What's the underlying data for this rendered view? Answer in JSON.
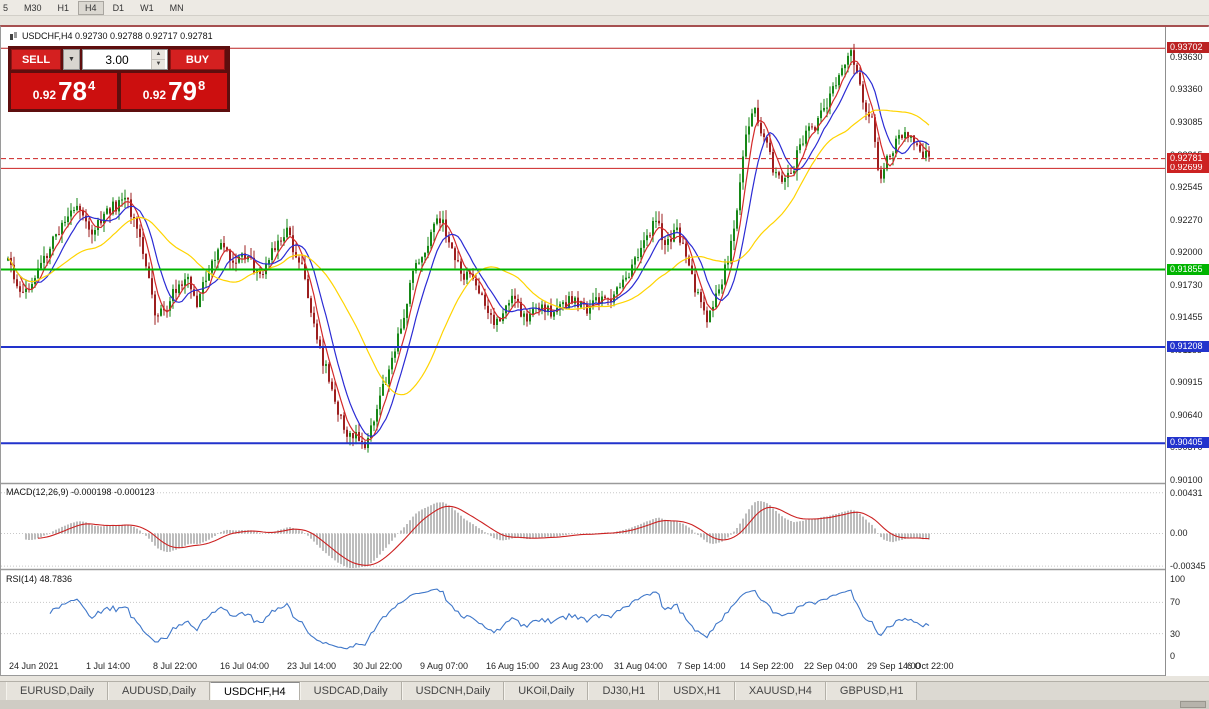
{
  "toolbar": {
    "periods": [
      "5",
      "M30",
      "H1",
      "H4",
      "D1",
      "W1",
      "MN"
    ],
    "active": "H4"
  },
  "chart": {
    "title": "USDCHF,H4 0.92730 0.92788 0.92717 0.92781",
    "trade_panel": {
      "sell_label": "SELL",
      "buy_label": "BUY",
      "lot": "3.00",
      "sell_price": {
        "small": "0.92",
        "big": "78",
        "sup": "4"
      },
      "buy_price": {
        "small": "0.92",
        "big": "79",
        "sup": "8"
      }
    }
  },
  "chart_data": {
    "type": "candlestick",
    "symbol": "USDCHF",
    "timeframe": "H4",
    "ohlc": {
      "open": "0.92730",
      "high": "0.92788",
      "low": "0.92717",
      "close": "0.92781"
    },
    "colors": {
      "candle_up": "#178717",
      "candle_down": "#9c1f1f",
      "ma_fast": "#d42a2a",
      "ma_mid": "#2b2bd4",
      "ma_slow": "#ffd400",
      "macd_hist": "#bdbdbd",
      "macd_signal": "#cc2222",
      "rsi_line": "#3f77c9"
    },
    "main": {
      "price_max": 0.9388,
      "price_min": 0.90081,
      "candle_count": 308,
      "y_ticks": [
        "0.93630",
        "0.93360",
        "0.93085",
        "0.92815",
        "0.92545",
        "0.92270",
        "0.92000",
        "0.91730",
        "0.91455",
        "0.91185",
        "0.90915",
        "0.90640",
        "0.90370",
        "0.90100"
      ],
      "hlines": [
        {
          "price": 0.93702,
          "label": "0.93702",
          "color": "#bb2222",
          "width": 1
        },
        {
          "price": 0.92699,
          "label": "0.92699",
          "color": "#cc2222",
          "width": 1
        },
        {
          "price": 0.91855,
          "label": "0.91855",
          "color": "#00b400",
          "width": 2
        },
        {
          "price": 0.91208,
          "label": "0.91208",
          "color": "#2233cc",
          "width": 2
        },
        {
          "price": 0.90405,
          "label": "0.90405",
          "color": "#2233cc",
          "width": 2
        }
      ],
      "bid": {
        "price": 0.92781,
        "label": "0.92781",
        "color": "#cc2222"
      },
      "path": [
        [
          0.0,
          0.9193
        ],
        [
          0.01,
          0.917
        ],
        [
          0.022,
          0.9168
        ],
        [
          0.035,
          0.919
        ],
        [
          0.06,
          0.9226
        ],
        [
          0.075,
          0.924
        ],
        [
          0.092,
          0.9218
        ],
        [
          0.108,
          0.9235
        ],
        [
          0.129,
          0.9243
        ],
        [
          0.14,
          0.9222
        ],
        [
          0.15,
          0.9185
        ],
        [
          0.16,
          0.915
        ],
        [
          0.172,
          0.9148
        ],
        [
          0.18,
          0.9168
        ],
        [
          0.194,
          0.918
        ],
        [
          0.205,
          0.9158
        ],
        [
          0.22,
          0.9185
        ],
        [
          0.232,
          0.9212
        ],
        [
          0.245,
          0.9185
        ],
        [
          0.258,
          0.9198
        ],
        [
          0.272,
          0.918
        ],
        [
          0.285,
          0.9198
        ],
        [
          0.302,
          0.9218
        ],
        [
          0.318,
          0.919
        ],
        [
          0.33,
          0.915
        ],
        [
          0.342,
          0.911
        ],
        [
          0.355,
          0.9075
        ],
        [
          0.368,
          0.9042
        ],
        [
          0.378,
          0.905
        ],
        [
          0.388,
          0.9036
        ],
        [
          0.398,
          0.906
        ],
        [
          0.408,
          0.9088
        ],
        [
          0.42,
          0.912
        ],
        [
          0.432,
          0.9155
        ],
        [
          0.442,
          0.9188
        ],
        [
          0.455,
          0.9208
        ],
        [
          0.465,
          0.923
        ],
        [
          0.473,
          0.9222
        ],
        [
          0.482,
          0.9205
        ],
        [
          0.492,
          0.9182
        ],
        [
          0.505,
          0.9178
        ],
        [
          0.516,
          0.9158
        ],
        [
          0.527,
          0.914
        ],
        [
          0.538,
          0.9152
        ],
        [
          0.55,
          0.9162
        ],
        [
          0.561,
          0.9145
        ],
        [
          0.575,
          0.9158
        ],
        [
          0.589,
          0.9148
        ],
        [
          0.602,
          0.9155
        ],
        [
          0.615,
          0.9162
        ],
        [
          0.629,
          0.9152
        ],
        [
          0.643,
          0.9163
        ],
        [
          0.656,
          0.9158
        ],
        [
          0.667,
          0.9175
        ],
        [
          0.68,
          0.9192
        ],
        [
          0.694,
          0.9212
        ],
        [
          0.704,
          0.9228
        ],
        [
          0.715,
          0.9205
        ],
        [
          0.726,
          0.9218
        ],
        [
          0.737,
          0.9192
        ],
        [
          0.747,
          0.9168
        ],
        [
          0.758,
          0.9145
        ],
        [
          0.769,
          0.9162
        ],
        [
          0.78,
          0.9188
        ],
        [
          0.79,
          0.9232
        ],
        [
          0.801,
          0.9292
        ],
        [
          0.808,
          0.9322
        ],
        [
          0.819,
          0.9302
        ],
        [
          0.83,
          0.9272
        ],
        [
          0.841,
          0.9255
        ],
        [
          0.852,
          0.9268
        ],
        [
          0.86,
          0.9288
        ],
        [
          0.871,
          0.9302
        ],
        [
          0.882,
          0.9312
        ],
        [
          0.895,
          0.9332
        ],
        [
          0.909,
          0.9356
        ],
        [
          0.916,
          0.9366
        ],
        [
          0.927,
          0.9332
        ],
        [
          0.938,
          0.9308
        ],
        [
          0.946,
          0.9262
        ],
        [
          0.957,
          0.9282
        ],
        [
          0.968,
          0.9295
        ],
        [
          0.978,
          0.93
        ],
        [
          0.989,
          0.9286
        ],
        [
          1.0,
          0.9278
        ]
      ],
      "ma_overlays": [
        {
          "period": 5,
          "color_key": "ma_fast"
        },
        {
          "period": 10,
          "color_key": "ma_mid"
        },
        {
          "period": 30,
          "color_key": "ma_slow"
        }
      ]
    },
    "macd": {
      "label": "MACD(12,26,9) -0.000198 -0.000123",
      "fast": 12,
      "slow": 26,
      "signal": 9,
      "max": 0.00513,
      "min": -0.00365,
      "axis": [
        {
          "v": 0.00431,
          "label": "0.00431"
        },
        {
          "v": 0,
          "label": "0.00"
        },
        {
          "v": -0.00345,
          "label": "-0.00345"
        }
      ]
    },
    "rsi": {
      "label": "RSI(14) 48.7836",
      "period": 14,
      "levels": [
        70,
        30
      ],
      "axis": [
        {
          "v": 100,
          "label": "100"
        },
        {
          "v": 70,
          "label": "70"
        },
        {
          "v": 30,
          "label": "30"
        },
        {
          "v": 0,
          "label": "0"
        }
      ]
    },
    "x_labels": [
      "24 Jun 2021",
      "1 Jul 14:00",
      "8 Jul 22:00",
      "16 Jul 04:00",
      "23 Jul 14:00",
      "30 Jul 22:00",
      "9 Aug 07:00",
      "16 Aug 15:00",
      "23 Aug 23:00",
      "31 Aug 04:00",
      "7 Sep 14:00",
      "14 Sep 22:00",
      "22 Sep 04:00",
      "29 Sep 14:00",
      "6 Oct 22:00"
    ]
  },
  "tabs": {
    "items": [
      "EURUSD,Daily",
      "AUDUSD,Daily",
      "USDCHF,H4",
      "USDCAD,Daily",
      "USDCNH,Daily",
      "UKOil,Daily",
      "DJ30,H1",
      "USDX,H1",
      "XAUUSD,H4",
      "GBPUSD,H1"
    ],
    "active": "USDCHF,H4"
  }
}
